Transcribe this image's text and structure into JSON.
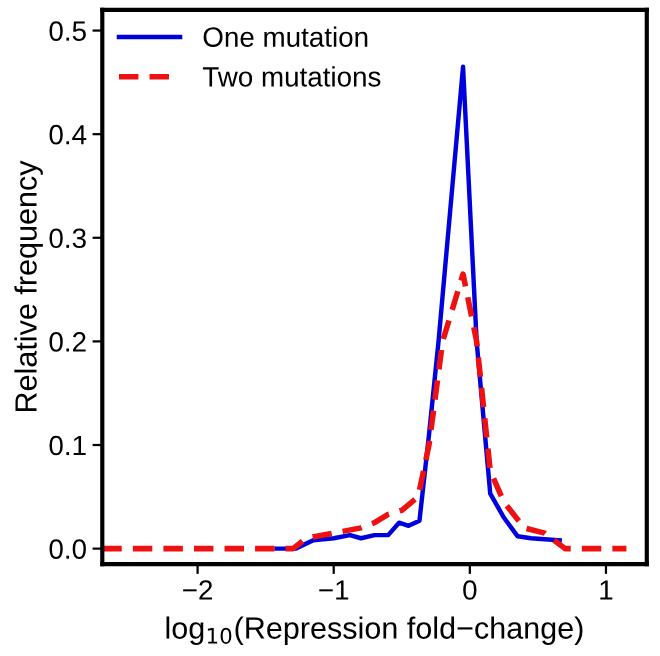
{
  "chart_data": {
    "type": "line",
    "xlabel": "log$_{10}$(Repression fold−change)",
    "ylabel": "Relative frequency",
    "xlim": [
      -2.7,
      1.3
    ],
    "ylim": [
      -0.015,
      0.52
    ],
    "xticks": [
      {
        "value": -2,
        "label": "−2"
      },
      {
        "value": -1,
        "label": "−1"
      },
      0,
      1
    ],
    "yticks": [
      {
        "value": 0,
        "label": "0.0"
      },
      0.1,
      0.2,
      0.3,
      0.4,
      0.5
    ],
    "grid": false,
    "legend": "top left",
    "marker": "none",
    "series": [
      {
        "name": "One mutation",
        "color": "#0000dd",
        "line_style": "solid",
        "x": [
          -1.42,
          -1.28,
          -1.15,
          -1.0,
          -0.88,
          -0.8,
          -0.7,
          -0.6,
          -0.52,
          -0.45,
          -0.37,
          -0.3,
          -0.23,
          -0.05,
          0.05,
          0.15,
          0.25,
          0.35,
          0.45,
          0.66
        ],
        "values": [
          0.0,
          0.0,
          0.008,
          0.01,
          0.013,
          0.01,
          0.013,
          0.013,
          0.025,
          0.022,
          0.027,
          0.11,
          0.2,
          0.465,
          0.2,
          0.053,
          0.03,
          0.012,
          0.01,
          0.008
        ]
      },
      {
        "name": "Two mutations",
        "color": "#ee1111",
        "line_style": "dashed",
        "x": [
          -2.7,
          -2.0,
          -1.4,
          -1.3,
          -1.2,
          -1.0,
          -0.8,
          -0.7,
          -0.6,
          -0.5,
          -0.38,
          -0.3,
          -0.2,
          -0.05,
          0.05,
          0.15,
          0.25,
          0.4,
          0.55,
          0.7,
          0.9,
          1.15
        ],
        "values": [
          0.0,
          0.0,
          0.0,
          0.0,
          0.01,
          0.015,
          0.02,
          0.025,
          0.033,
          0.037,
          0.05,
          0.1,
          0.2,
          0.265,
          0.2,
          0.075,
          0.045,
          0.02,
          0.015,
          0.0,
          0.0,
          0.0
        ]
      }
    ]
  }
}
